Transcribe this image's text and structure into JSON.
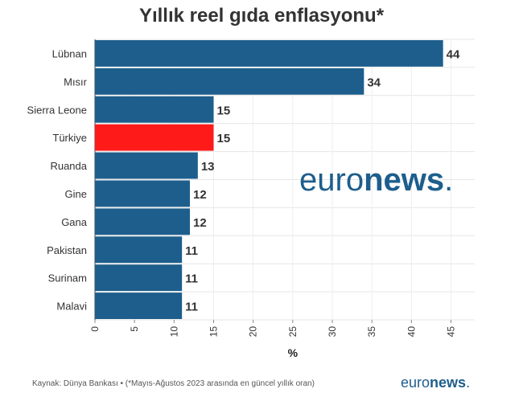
{
  "title": "Yıllık reel gıda enflasyonu*",
  "footer": "Kaynak: Dünya Bankası • (*Mayıs-Ağustos 2023 arasında en güncel yıllık oran)",
  "logo": {
    "light": "euro",
    "bold": "news",
    "dot": "."
  },
  "colors": {
    "bar": "#1d5e8c",
    "highlight": "#ff1a1a"
  },
  "chart_data": {
    "type": "bar",
    "orientation": "horizontal",
    "title": "Yıllık reel gıda enflasyonu*",
    "xlabel": "%",
    "ylabel": "",
    "xlim": [
      0,
      48
    ],
    "xticks": [
      0,
      5,
      10,
      15,
      20,
      25,
      30,
      35,
      40,
      45
    ],
    "grid": true,
    "categories": [
      "Lübnan",
      "Mısır",
      "Sierra Leone",
      "Türkiye",
      "Ruanda",
      "Gine",
      "Gana",
      "Pakistan",
      "Surinam",
      "Malavi"
    ],
    "values": [
      44,
      34,
      15,
      15,
      13,
      12,
      12,
      11,
      11,
      11
    ],
    "highlight": "Türkiye"
  }
}
